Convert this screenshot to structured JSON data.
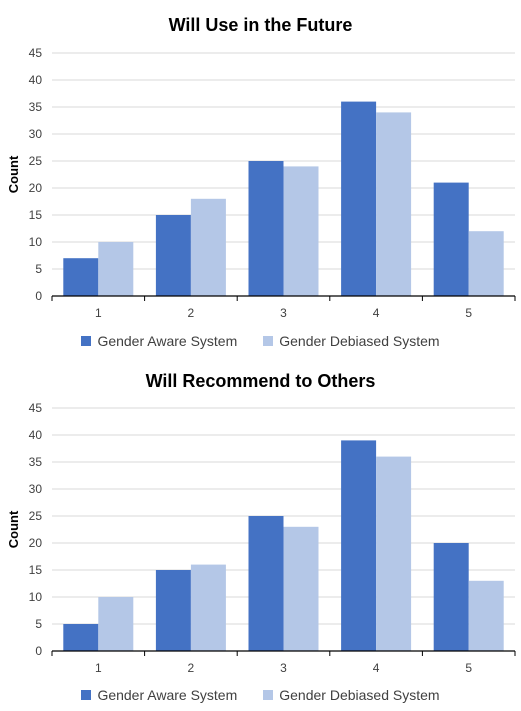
{
  "colors": {
    "series_1": "#4472C4",
    "series_2": "#B4C7E7",
    "gridline": "#D9D9D9",
    "axis": "#000000",
    "tick_text": "#404040"
  },
  "chart_data": [
    {
      "type": "bar",
      "title": "Will Use in the Future",
      "xlabel": "",
      "ylabel": "Count",
      "ylim": [
        0,
        45
      ],
      "yticks": [
        0,
        5,
        10,
        15,
        20,
        25,
        30,
        35,
        40,
        45
      ],
      "grid": true,
      "legend": "bottom",
      "categories": [
        "1",
        "2",
        "3",
        "4",
        "5"
      ],
      "series": [
        {
          "name": "Gender Aware System",
          "values": [
            7,
            15,
            25,
            36,
            21
          ]
        },
        {
          "name": "Gender Debiased System",
          "values": [
            10,
            18,
            24,
            34,
            12
          ]
        }
      ]
    },
    {
      "type": "bar",
      "title": "Will Recommend to Others",
      "xlabel": "",
      "ylabel": "Count",
      "ylim": [
        0,
        45
      ],
      "yticks": [
        0,
        5,
        10,
        15,
        20,
        25,
        30,
        35,
        40,
        45
      ],
      "grid": true,
      "legend": "bottom",
      "categories": [
        "1",
        "2",
        "3",
        "4",
        "5"
      ],
      "series": [
        {
          "name": "Gender Aware System",
          "values": [
            5,
            15,
            25,
            39,
            20
          ]
        },
        {
          "name": "Gender Debiased System",
          "values": [
            10,
            16,
            23,
            36,
            13
          ]
        }
      ]
    }
  ]
}
